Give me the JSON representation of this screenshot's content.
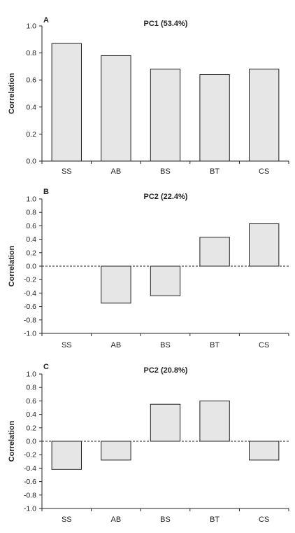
{
  "chart_data": [
    {
      "type": "bar",
      "panel_letter": "A",
      "title": "PC1 (53.4%)",
      "ylabel": "Correlation",
      "categories": [
        "SS",
        "AB",
        "BS",
        "BT",
        "CS"
      ],
      "values": [
        0.87,
        0.78,
        0.68,
        0.64,
        0.68
      ],
      "ylim": [
        0.0,
        1.0
      ],
      "yticks": [
        0.0,
        0.2,
        0.4,
        0.6,
        0.8,
        1.0
      ],
      "ytick_labels": [
        "0.0",
        "0.2",
        "0.4",
        "0.6",
        "0.8",
        "1.0"
      ],
      "zero_line": false,
      "grid": false
    },
    {
      "type": "bar",
      "panel_letter": "B",
      "title": "PC2 (22.4%)",
      "ylabel": "Correlation",
      "categories": [
        "SS",
        "AB",
        "BS",
        "BT",
        "CS"
      ],
      "values": [
        0.0,
        -0.55,
        -0.44,
        0.43,
        0.63
      ],
      "ylim": [
        -1.0,
        1.0
      ],
      "yticks": [
        -1.0,
        -0.8,
        -0.6,
        -0.4,
        -0.2,
        0.0,
        0.2,
        0.4,
        0.6,
        0.8,
        1.0
      ],
      "ytick_labels": [
        "-1.0",
        "-0.8",
        "-0.6",
        "-0.4",
        "-0.2",
        "0.0",
        "0.2",
        "0.4",
        "0.6",
        "0.8",
        "1.0"
      ],
      "zero_line": true,
      "grid": false
    },
    {
      "type": "bar",
      "panel_letter": "C",
      "title": "PC2 (20.8%)",
      "ylabel": "Correlation",
      "categories": [
        "SS",
        "AB",
        "BS",
        "BT",
        "CS"
      ],
      "values": [
        -0.42,
        -0.28,
        0.55,
        0.6,
        -0.28
      ],
      "ylim": [
        -1.0,
        1.0
      ],
      "yticks": [
        -1.0,
        -0.8,
        -0.6,
        -0.4,
        -0.2,
        0.0,
        0.2,
        0.4,
        0.6,
        0.8,
        1.0
      ],
      "ytick_labels": [
        "-1.0",
        "-0.8",
        "-0.6",
        "-0.4",
        "-0.2",
        "0.0",
        "0.2",
        "0.4",
        "0.6",
        "0.8",
        "1.0"
      ],
      "zero_line": true,
      "grid": false
    }
  ],
  "colors": {
    "bar_fill": "#e6e6e6",
    "bar_stroke": "#222222",
    "axis": "#222222",
    "text": "#222222",
    "background": "#ffffff"
  }
}
